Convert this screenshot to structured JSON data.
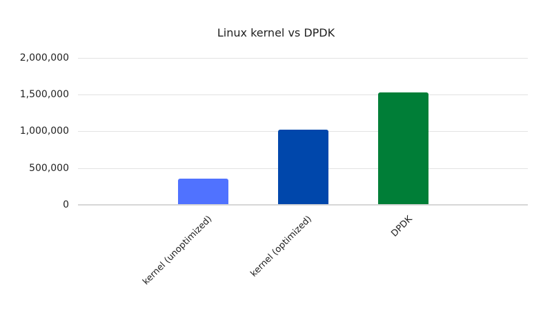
{
  "chart_data": {
    "type": "bar",
    "title": "Linux kernel vs DPDK",
    "xlabel": "",
    "ylabel": "",
    "categories": [
      "kernel (unoptimized)",
      "kernel (optimized)",
      "DPDK"
    ],
    "values": [
      360000,
      1020000,
      1530000
    ],
    "colors": [
      "#5072ff",
      "#0047ab",
      "#007e37"
    ],
    "ylim": [
      0,
      2000000
    ],
    "yticks": [
      "0",
      "500,000",
      "1,000,000",
      "1,500,000",
      "2,000,000"
    ],
    "grid": true,
    "legend": "none"
  }
}
